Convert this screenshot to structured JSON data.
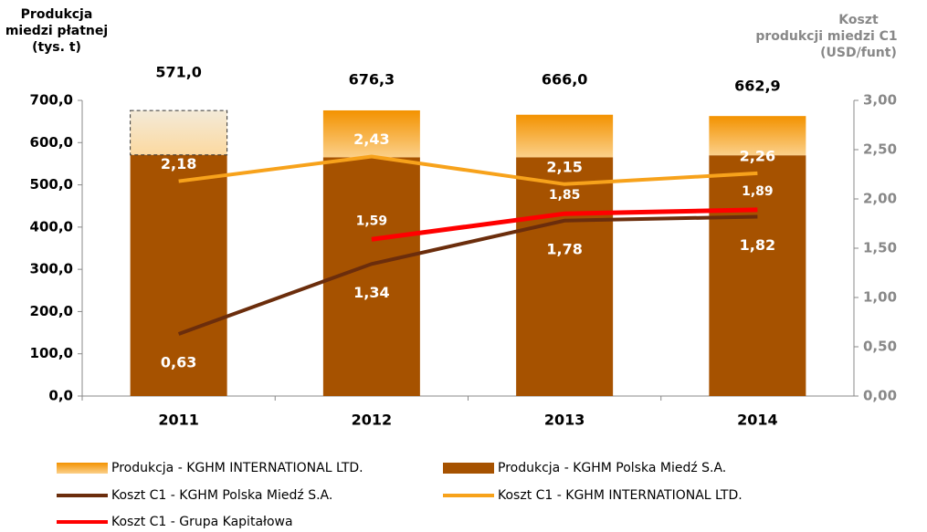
{
  "chart_data": {
    "type": "bar_line",
    "ylabel": [
      "Produkcja",
      "miedzi płatnej",
      "(tys. t)"
    ],
    "y2label": [
      "Koszt",
      "produkcji miedzi C1",
      "(USD/funt)"
    ],
    "categories": [
      "2011",
      "2012",
      "2013",
      "2014"
    ],
    "ylim": [
      0,
      700
    ],
    "yticks": [
      {
        "value": 0,
        "label": "0,0"
      },
      {
        "value": 100,
        "label": "100,0"
      },
      {
        "value": 200,
        "label": "200,0"
      },
      {
        "value": 300,
        "label": "300,0"
      },
      {
        "value": 400,
        "label": "400,0"
      },
      {
        "value": 500,
        "label": "500,0"
      },
      {
        "value": 600,
        "label": "600,0"
      },
      {
        "value": 700,
        "label": "700,0"
      }
    ],
    "y2lim": [
      0,
      3
    ],
    "y2ticks": [
      {
        "value": 0,
        "label": "0,00"
      },
      {
        "value": 0.5,
        "label": "0,50"
      },
      {
        "value": 1,
        "label": "1,00"
      },
      {
        "value": 1.5,
        "label": "1,50"
      },
      {
        "value": 2,
        "label": "2,00"
      },
      {
        "value": 2.5,
        "label": "2,50"
      },
      {
        "value": 3,
        "label": "3,00"
      }
    ],
    "totals": [
      571.0,
      676.3,
      666.0,
      662.9
    ],
    "total_labels": [
      "571,0",
      "676,3",
      "666,0",
      "662,9"
    ],
    "bars": [
      {
        "name": "Produkcja - KGHM Polska Miedź S.A.",
        "color": "#a65200",
        "values": [
          571,
          565,
          565,
          570
        ]
      },
      {
        "name": "Produkcja - KGHM INTERNATIONAL LTD.",
        "color": "#f39200",
        "values": [
          105,
          111.3,
          101,
          92.9
        ],
        "dashed": [
          true,
          false,
          false,
          false
        ]
      }
    ],
    "series": [
      {
        "name": "Koszt C1 - KGHM Polska Miedź S.A.",
        "color": "#6b2d0c",
        "axis": "y2",
        "values": [
          0.63,
          1.34,
          1.78,
          1.82
        ],
        "value_labels": [
          "0,63",
          "1,34",
          "1,78",
          "1,82"
        ]
      },
      {
        "name": "Koszt C1 - KGHM INTERNATIONAL LTD.",
        "color": "#f7a21b",
        "axis": "y2",
        "values": [
          2.18,
          2.43,
          2.15,
          2.26
        ],
        "value_labels": [
          "2,18",
          "2,43",
          "2,15",
          "2,26"
        ]
      },
      {
        "name": "Koszt C1 - Grupa Kapitałowa",
        "color": "#ff0000",
        "axis": "y2",
        "values": [
          null,
          1.59,
          1.85,
          1.89
        ],
        "value_labels": [
          null,
          "1,59",
          "1,85",
          "1,89"
        ]
      }
    ]
  }
}
